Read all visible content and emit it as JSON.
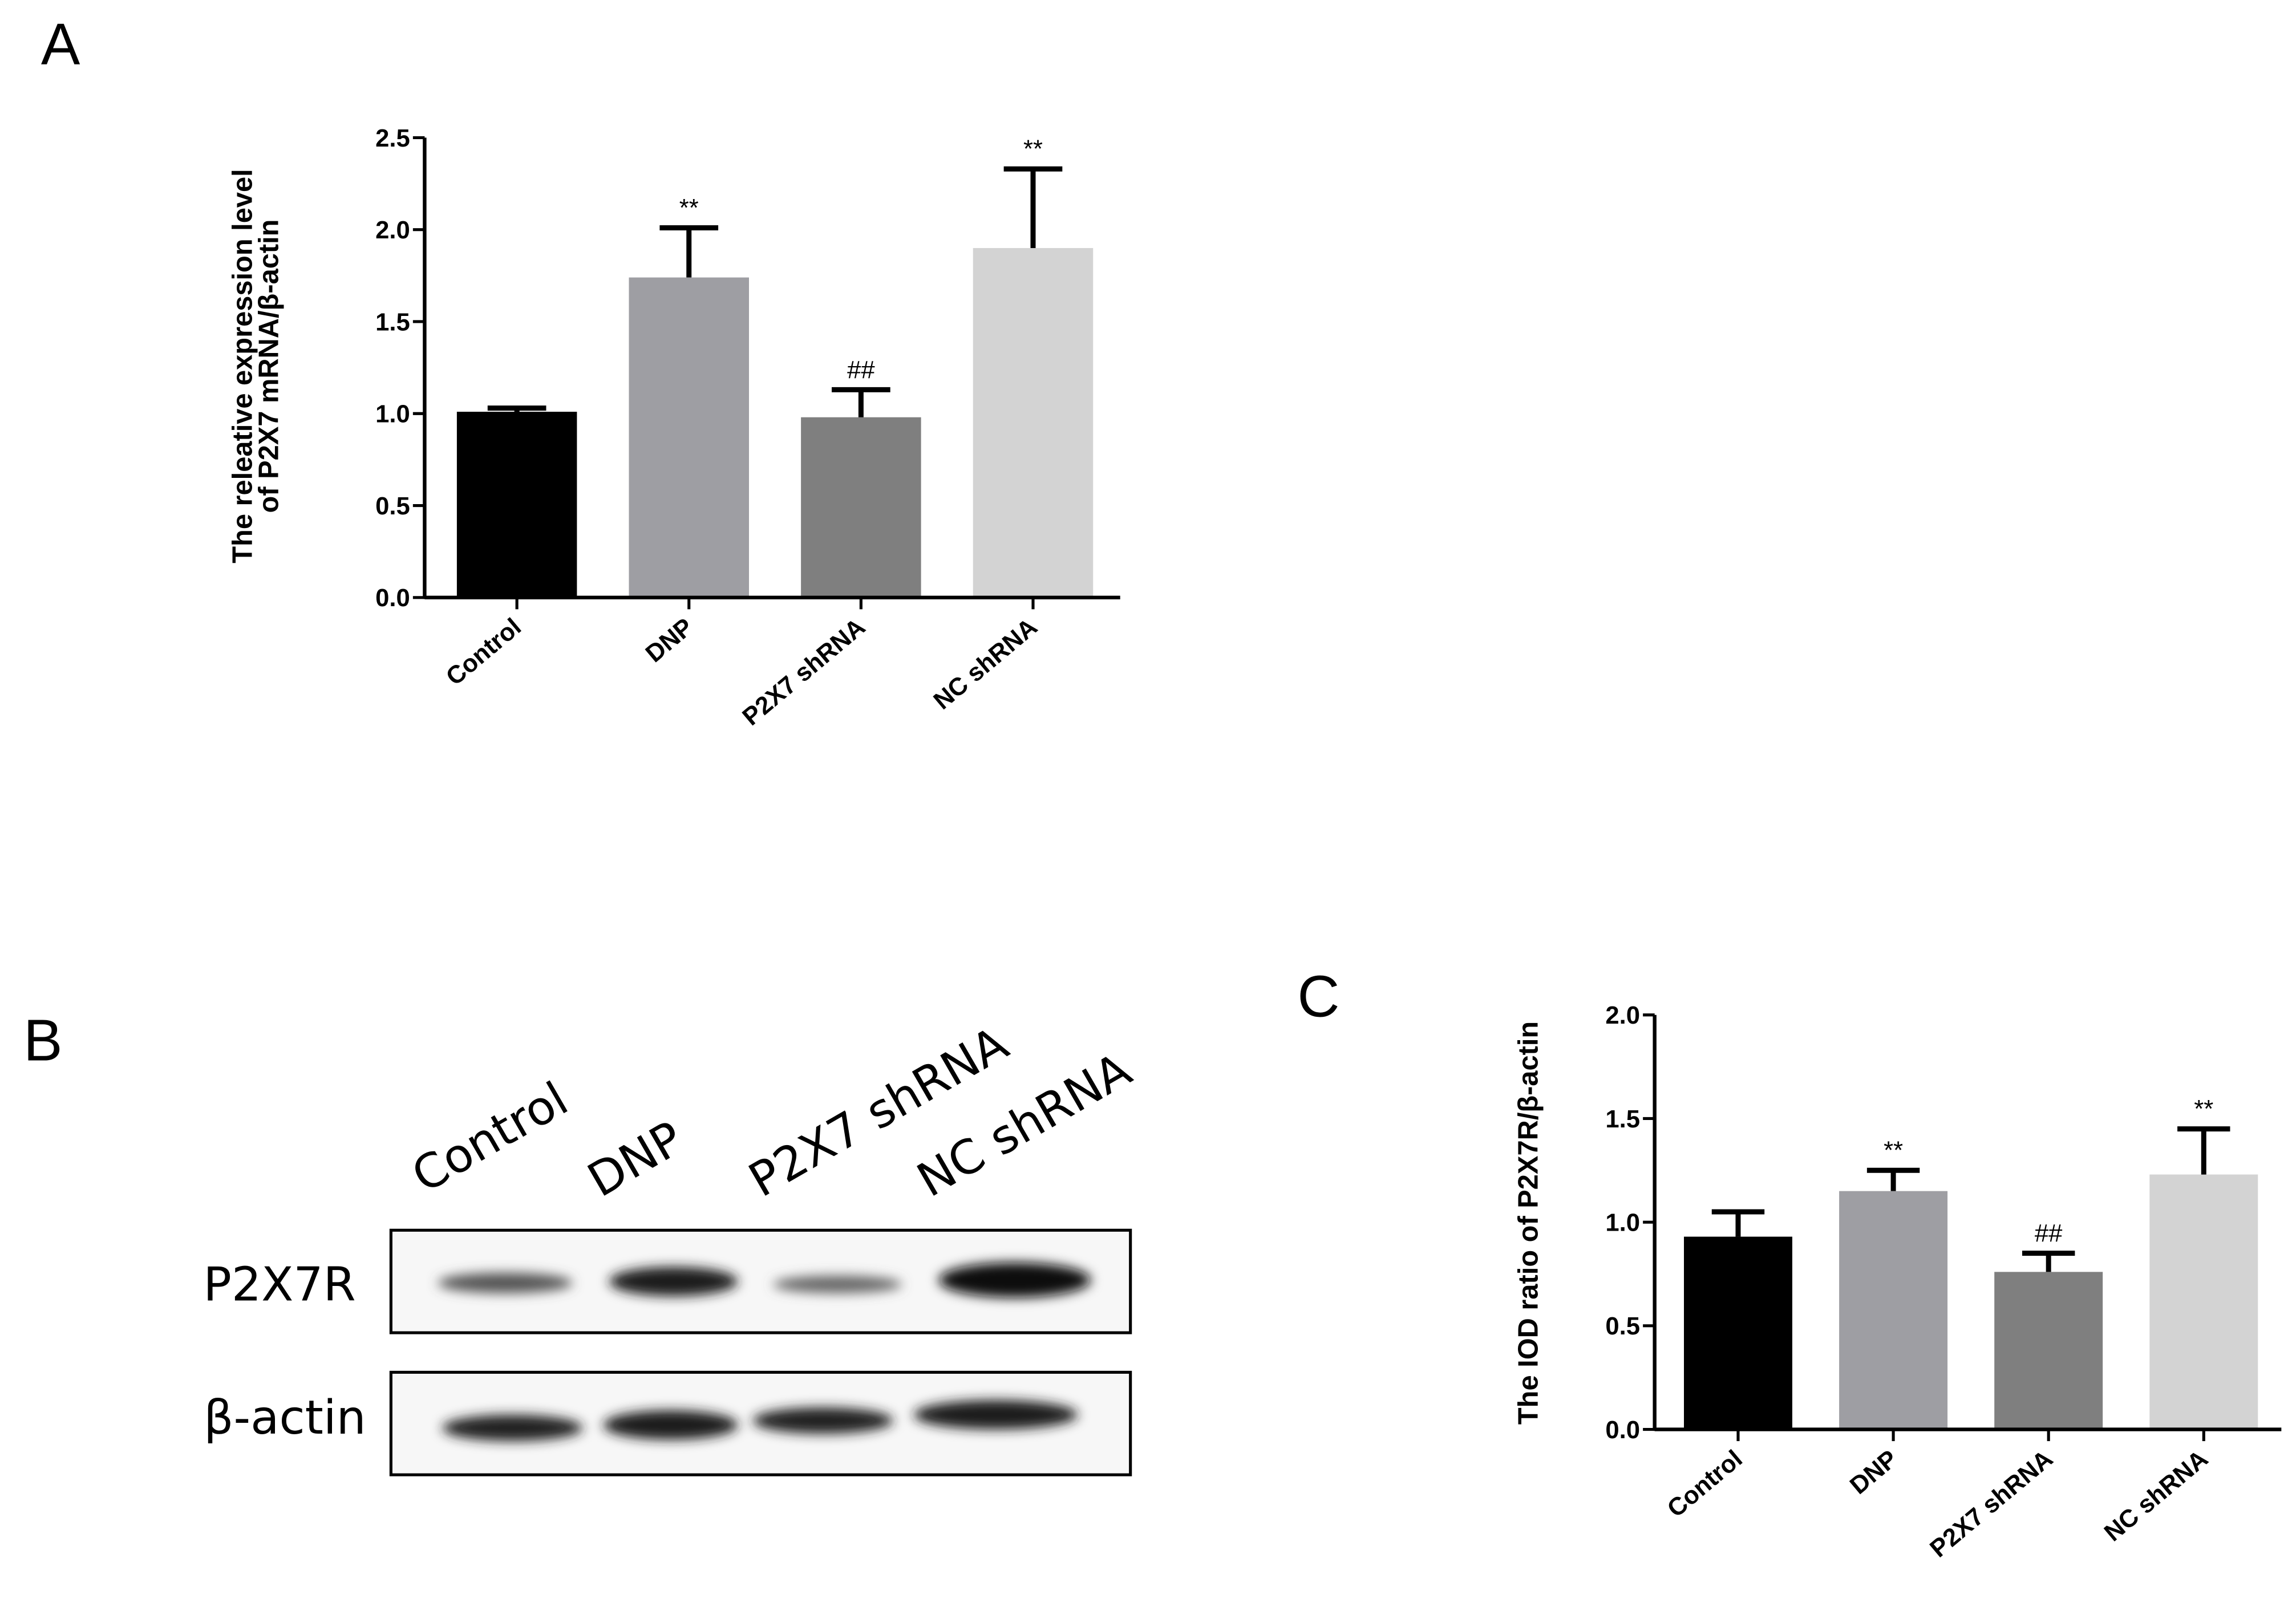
{
  "chart_data": [
    {
      "type": "bar",
      "panel_label": "A",
      "ylabel": [
        "The releative expression level",
        "of P2X7 mRNA/β-actin"
      ],
      "categories": [
        "Control",
        "DNP",
        "P2X7 shRNA",
        "NC shRNA"
      ],
      "values": [
        1.01,
        1.74,
        0.98,
        1.9
      ],
      "errors": [
        0.02,
        0.27,
        0.15,
        0.43
      ],
      "colors": [
        "#000000",
        "#9e9ea3",
        "#7f7f7f",
        "#d3d3d3"
      ],
      "annotations": [
        null,
        "**",
        "##",
        "**"
      ],
      "ylim": [
        0,
        2.5
      ],
      "yticks": [
        {
          "value": 0,
          "label": "0.0"
        },
        0.5,
        {
          "value": 1,
          "label": "1.0"
        },
        1.5,
        {
          "value": 2,
          "label": "2.0"
        },
        2.5
      ]
    },
    {
      "type": "bar",
      "panel_label": "C",
      "ylabel": [
        "The IOD ratio of P2X7R/β-actin"
      ],
      "categories": [
        "Control",
        "DNP",
        "P2X7 shRNA",
        "NC shRNA"
      ],
      "values": [
        0.93,
        1.15,
        0.76,
        1.23
      ],
      "errors": [
        0.12,
        0.1,
        0.09,
        0.22
      ],
      "colors": [
        "#000000",
        "#9e9ea3",
        "#7f7f7f",
        "#d3d3d3"
      ],
      "annotations": [
        null,
        "**",
        "##",
        "**"
      ],
      "ylim": [
        0,
        2
      ],
      "yticks": [
        {
          "value": 0,
          "label": "0.0"
        },
        0.5,
        {
          "value": 1,
          "label": "1.0"
        },
        1.5,
        {
          "value": 2,
          "label": "2.0"
        }
      ]
    }
  ],
  "blot": {
    "panel_label": "B",
    "lanes": [
      "Control",
      "DNP",
      "P2X7 shRNA",
      "NC shRNA"
    ],
    "rows": [
      "P2X7R",
      "β-actin"
    ]
  }
}
